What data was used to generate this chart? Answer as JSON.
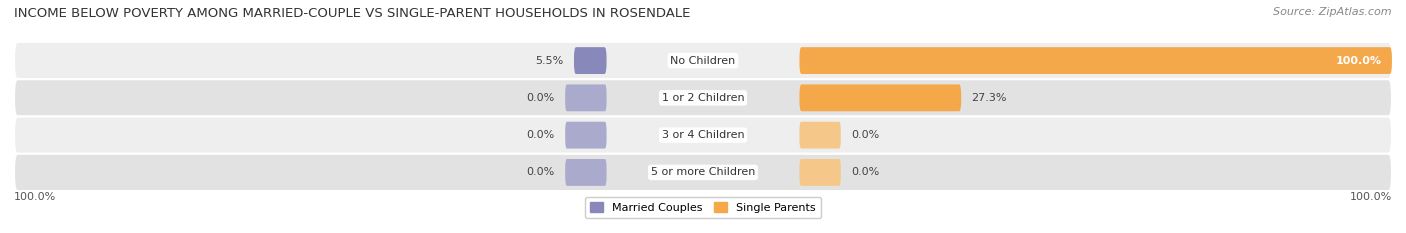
{
  "title": "INCOME BELOW POVERTY AMONG MARRIED-COUPLE VS SINGLE-PARENT HOUSEHOLDS IN ROSENDALE",
  "source": "Source: ZipAtlas.com",
  "categories": [
    "No Children",
    "1 or 2 Children",
    "3 or 4 Children",
    "5 or more Children"
  ],
  "married_values": [
    5.5,
    0.0,
    0.0,
    0.0
  ],
  "single_values": [
    100.0,
    27.3,
    0.0,
    0.0
  ],
  "married_color": "#8888bb",
  "single_color": "#f5a84a",
  "married_stub_color": "#aaaacc",
  "single_stub_color": "#f5c88a",
  "row_bg_light": "#eeeeee",
  "row_bg_dark": "#e2e2e2",
  "x_left_label": "100.0%",
  "x_right_label": "100.0%",
  "max_val": 100.0,
  "title_fontsize": 9.5,
  "source_fontsize": 8,
  "value_fontsize": 8,
  "legend_fontsize": 8,
  "category_fontsize": 8
}
